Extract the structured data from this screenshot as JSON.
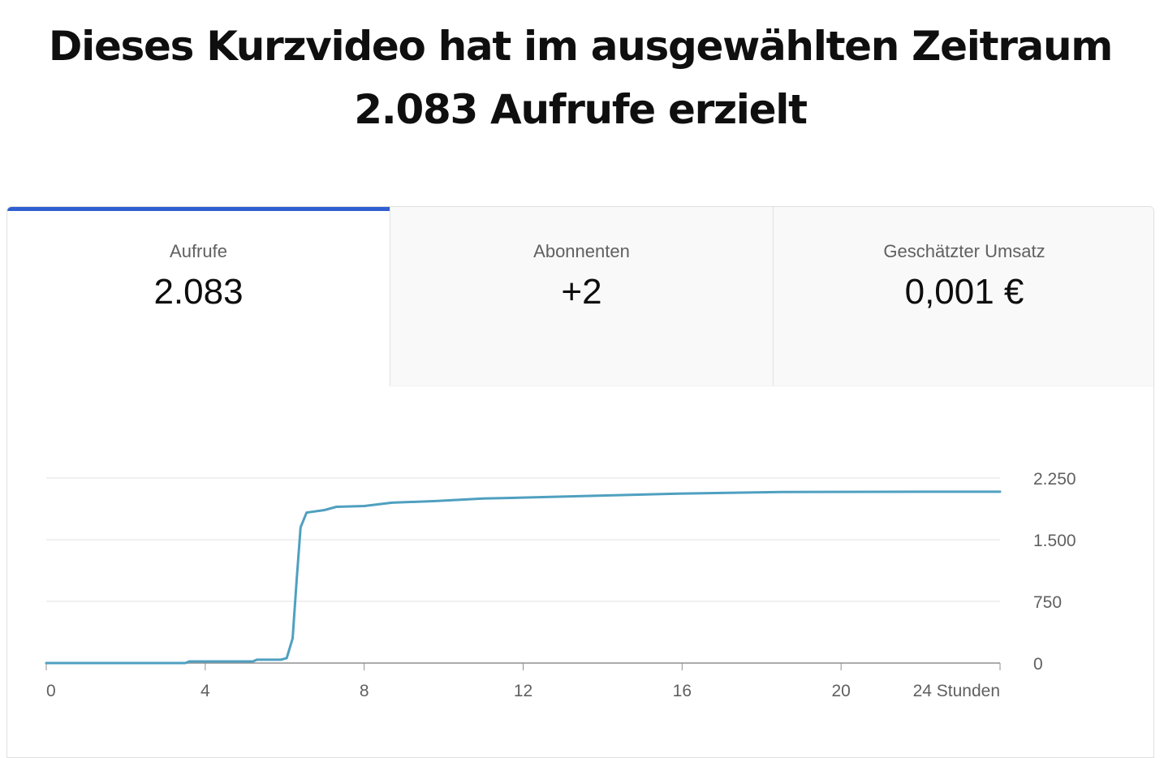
{
  "headline": {
    "line1": "Dieses Kurzvideo hat im ausgewählten Zeitraum",
    "line2": "2.083 Aufrufe erzielt"
  },
  "tabs": [
    {
      "label": "Aufrufe",
      "value": "2.083",
      "active": true
    },
    {
      "label": "Abonnenten",
      "value": "+2",
      "active": false
    },
    {
      "label": "Geschätzter Umsatz",
      "value": "0,001 €",
      "active": false
    }
  ],
  "colors": {
    "accent": "#2f5fd0",
    "line": "#4fa0c0",
    "grid": "#e0e0e0"
  },
  "chart_data": {
    "type": "line",
    "xlabel": "",
    "ylabel": "",
    "xlim": [
      0,
      24
    ],
    "ylim": [
      0,
      2250
    ],
    "x_ticks": [
      0,
      4,
      8,
      12,
      16,
      20
    ],
    "x_tick_labels": [
      "0",
      "4",
      "8",
      "12",
      "16",
      "20"
    ],
    "x_end_label": "24 Stunden",
    "y_ticks": [
      0,
      750,
      1500,
      2250
    ],
    "y_tick_labels": [
      "0",
      "750",
      "1.500",
      "2.250"
    ],
    "grid": true,
    "series": [
      {
        "points": [
          [
            0,
            0
          ],
          [
            3.5,
            0
          ],
          [
            3.6,
            20
          ],
          [
            5.2,
            20
          ],
          [
            5.3,
            40
          ],
          [
            5.9,
            40
          ],
          [
            6.05,
            60
          ],
          [
            6.2,
            300
          ],
          [
            6.3,
            1000
          ],
          [
            6.4,
            1650
          ],
          [
            6.55,
            1830
          ],
          [
            7.0,
            1860
          ],
          [
            7.3,
            1900
          ],
          [
            8.0,
            1910
          ],
          [
            8.7,
            1950
          ],
          [
            9.8,
            1970
          ],
          [
            11.0,
            2000
          ],
          [
            12.7,
            2020
          ],
          [
            14.3,
            2040
          ],
          [
            15.9,
            2060
          ],
          [
            18.5,
            2080
          ],
          [
            22.2,
            2083
          ],
          [
            24,
            2083
          ]
        ]
      }
    ]
  }
}
